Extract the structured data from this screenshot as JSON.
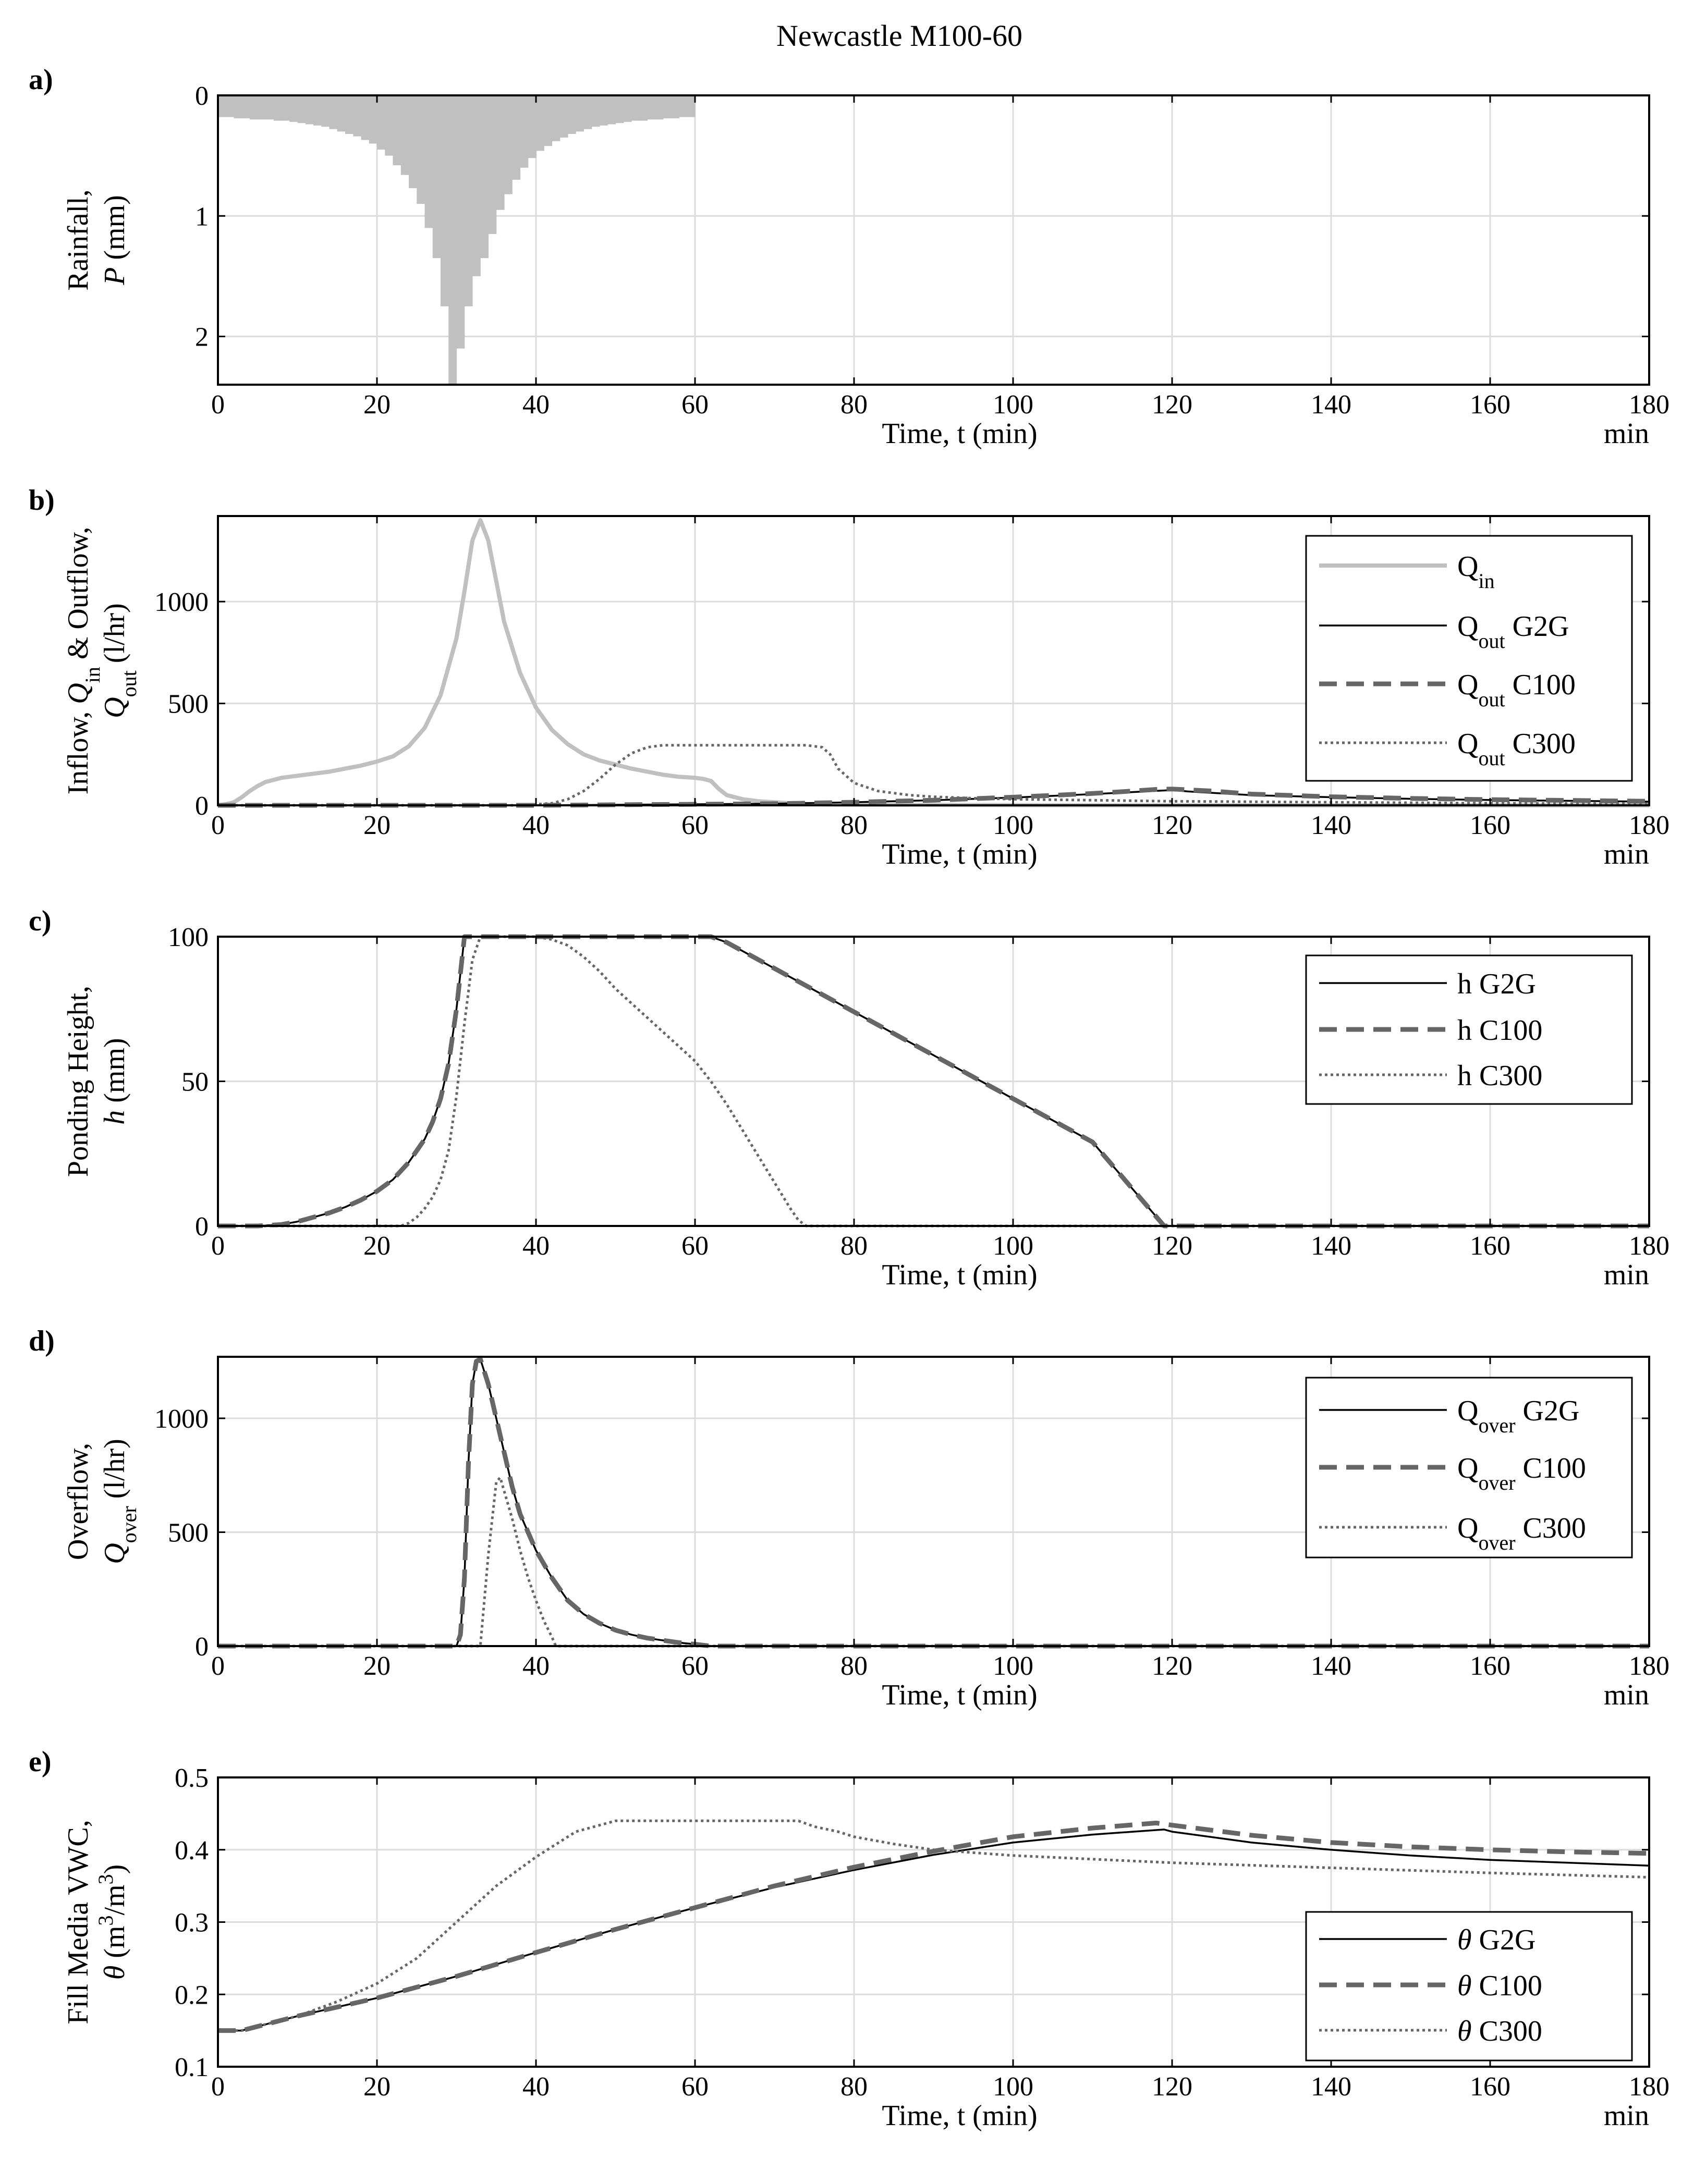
{
  "figure": {
    "title": "Newcastle M100-60"
  },
  "colors": {
    "light_gray": "#c0c0c0",
    "dark_gray": "#666666",
    "black": "#000000",
    "grid": "#dcdcdc"
  },
  "chart_data": [
    {
      "id": "a",
      "tag": "a)",
      "type": "bar",
      "title": "",
      "ylabel": [
        "Rainfall,",
        "P (mm)"
      ],
      "xlabel": "Time, t (min)",
      "xunit": "min",
      "xlim": [
        0,
        180
      ],
      "ylim": [
        0,
        2.4
      ],
      "yreversed": true,
      "xticks": [
        0,
        20,
        40,
        60,
        80,
        100,
        120,
        140,
        160,
        180
      ],
      "yticks": [
        0,
        1,
        2
      ],
      "bar_color": "#c0c0c0",
      "series": [
        {
          "name": "Rainfall",
          "x": [
            1,
            2,
            3,
            4,
            5,
            6,
            7,
            8,
            9,
            10,
            11,
            12,
            13,
            14,
            15,
            16,
            17,
            18,
            19,
            20,
            21,
            22,
            23,
            24,
            25,
            26,
            27,
            28,
            29,
            30,
            31,
            32,
            33,
            34,
            35,
            36,
            37,
            38,
            39,
            40,
            41,
            42,
            43,
            44,
            45,
            46,
            47,
            48,
            49,
            50,
            51,
            52,
            53,
            54,
            55,
            56,
            57,
            58,
            59,
            60
          ],
          "values": [
            0.18,
            0.18,
            0.19,
            0.19,
            0.2,
            0.2,
            0.2,
            0.21,
            0.21,
            0.22,
            0.23,
            0.24,
            0.25,
            0.26,
            0.28,
            0.3,
            0.32,
            0.34,
            0.37,
            0.4,
            0.45,
            0.5,
            0.58,
            0.66,
            0.77,
            0.9,
            1.1,
            1.35,
            1.75,
            2.4,
            2.1,
            1.75,
            1.5,
            1.35,
            1.15,
            0.95,
            0.82,
            0.7,
            0.6,
            0.52,
            0.46,
            0.42,
            0.38,
            0.35,
            0.32,
            0.3,
            0.28,
            0.26,
            0.25,
            0.24,
            0.23,
            0.22,
            0.21,
            0.21,
            0.2,
            0.2,
            0.19,
            0.19,
            0.18,
            0.18
          ]
        }
      ]
    },
    {
      "id": "b",
      "tag": "b)",
      "type": "line",
      "title": "",
      "ylabel": [
        "Inflow, Qin & Outflow,",
        "Qout (l/hr)"
      ],
      "xlabel": "Time, t (min)",
      "xunit": "min",
      "xlim": [
        0,
        180
      ],
      "ylim": [
        0,
        1420
      ],
      "xticks": [
        0,
        20,
        40,
        60,
        80,
        100,
        120,
        140,
        160,
        180
      ],
      "yticks": [
        0,
        500,
        1000
      ],
      "legend_position": "top-right",
      "series": [
        {
          "name": "Q",
          "sub": "in",
          "suffix": "",
          "style": "solid-light",
          "x": [
            0,
            1,
            2,
            3,
            4,
            5,
            6,
            8,
            10,
            12,
            14,
            16,
            18,
            20,
            22,
            24,
            26,
            28,
            30,
            31,
            32,
            33,
            34,
            35,
            36,
            38,
            40,
            42,
            44,
            46,
            48,
            50,
            52,
            54,
            56,
            58,
            60,
            61,
            62,
            63,
            64,
            66,
            68,
            70,
            72,
            75,
            80,
            90,
            100,
            120,
            140,
            160,
            180
          ],
          "values": [
            0,
            5,
            15,
            40,
            70,
            95,
            115,
            135,
            145,
            155,
            165,
            180,
            195,
            215,
            240,
            290,
            380,
            540,
            820,
            1050,
            1300,
            1400,
            1300,
            1100,
            900,
            650,
            480,
            370,
            300,
            250,
            220,
            200,
            180,
            165,
            150,
            140,
            135,
            130,
            120,
            80,
            50,
            30,
            20,
            15,
            10,
            5,
            3,
            2,
            1,
            0,
            0,
            0,
            0
          ]
        },
        {
          "name": "Q",
          "sub": "out",
          "suffix": "G2G",
          "style": "solid-black",
          "x": [
            0,
            20,
            40,
            60,
            70,
            80,
            90,
            100,
            110,
            115,
            120,
            122,
            130,
            140,
            150,
            160,
            170,
            180
          ],
          "values": [
            0,
            0,
            0,
            5,
            8,
            15,
            25,
            38,
            55,
            65,
            75,
            68,
            50,
            40,
            32,
            26,
            22,
            18
          ]
        },
        {
          "name": "Q",
          "sub": "out",
          "suffix": "C100",
          "style": "dashed",
          "x": [
            0,
            20,
            40,
            60,
            70,
            80,
            90,
            100,
            110,
            115,
            118,
            120,
            125,
            130,
            140,
            150,
            160,
            170,
            180
          ],
          "values": [
            0,
            0,
            0,
            5,
            8,
            15,
            25,
            40,
            58,
            70,
            78,
            80,
            70,
            55,
            42,
            34,
            28,
            24,
            20
          ]
        },
        {
          "name": "Q",
          "sub": "out",
          "suffix": "C300",
          "style": "dotted",
          "x": [
            0,
            38,
            42,
            44,
            46,
            48,
            50,
            52,
            54,
            56,
            60,
            65,
            70,
            74,
            76,
            77,
            78,
            80,
            83,
            87,
            90,
            95,
            100,
            110,
            120,
            140,
            160,
            180
          ],
          "values": [
            0,
            0,
            10,
            30,
            70,
            130,
            200,
            255,
            285,
            295,
            295,
            295,
            295,
            295,
            285,
            250,
            180,
            110,
            70,
            50,
            42,
            35,
            30,
            25,
            20,
            15,
            10,
            8
          ]
        }
      ]
    },
    {
      "id": "c",
      "tag": "c)",
      "type": "line",
      "title": "",
      "ylabel": [
        "Ponding Height,",
        "h (mm)"
      ],
      "xlabel": "Time, t (min)",
      "xunit": "min",
      "xlim": [
        0,
        180
      ],
      "ylim": [
        0,
        100
      ],
      "xticks": [
        0,
        20,
        40,
        60,
        80,
        100,
        120,
        140,
        160,
        180
      ],
      "yticks": [
        0,
        50,
        100
      ],
      "legend_position": "top-right",
      "series": [
        {
          "name": "h",
          "sub": "",
          "suffix": "G2G",
          "style": "solid-black",
          "x": [
            0,
            5,
            8,
            10,
            12,
            14,
            16,
            18,
            20,
            22,
            24,
            26,
            27,
            28,
            29,
            30,
            31,
            32,
            40,
            50,
            60,
            62,
            64,
            70,
            80,
            90,
            100,
            110,
            119,
            120,
            130,
            140,
            150,
            160,
            170,
            180
          ],
          "values": [
            0,
            0,
            0.5,
            1.5,
            3,
            4.5,
            6.5,
            9,
            12,
            16,
            22,
            30,
            36,
            44,
            56,
            75,
            100,
            100,
            100,
            100,
            100,
            100,
            98,
            89,
            74,
            59,
            44,
            29,
            0,
            0,
            0,
            0,
            0,
            0,
            0,
            0
          ]
        },
        {
          "name": "h",
          "sub": "",
          "suffix": "C100",
          "style": "dashed",
          "x": [
            0,
            5,
            8,
            10,
            12,
            14,
            16,
            18,
            20,
            22,
            24,
            26,
            27,
            28,
            29,
            30,
            31,
            32,
            40,
            50,
            60,
            62,
            64,
            70,
            80,
            90,
            100,
            110,
            119,
            120,
            130,
            140,
            150,
            160,
            170,
            180
          ],
          "values": [
            0,
            0,
            0.5,
            1.5,
            3,
            4.5,
            6.5,
            9,
            12,
            16,
            22,
            30,
            36,
            44,
            56,
            75,
            100,
            100,
            100,
            100,
            100,
            100,
            98,
            89,
            74,
            59,
            44,
            29,
            0,
            0,
            0,
            0,
            0,
            0,
            0,
            0
          ]
        },
        {
          "name": "h",
          "sub": "",
          "suffix": "C300",
          "style": "dotted",
          "x": [
            0,
            23,
            24,
            25,
            26,
            27,
            28,
            29,
            30,
            31,
            32,
            33,
            34,
            36,
            40,
            42,
            44,
            46,
            48,
            50,
            52,
            54,
            56,
            58,
            60,
            62,
            64,
            66,
            68,
            70,
            72,
            73,
            74,
            80,
            120,
            180
          ],
          "values": [
            0,
            0,
            1,
            3,
            6,
            10,
            16,
            26,
            45,
            70,
            92,
            100,
            100,
            100,
            100,
            99,
            97,
            93,
            88,
            82,
            77,
            72,
            67,
            62,
            57,
            50,
            42,
            33,
            24,
            15,
            6,
            2,
            0,
            0,
            0,
            0
          ]
        }
      ]
    },
    {
      "id": "d",
      "tag": "d)",
      "type": "line",
      "title": "",
      "ylabel": [
        "Overflow,",
        "Qover (l/hr)"
      ],
      "xlabel": "Time, t (min)",
      "xunit": "min",
      "xlim": [
        0,
        180
      ],
      "ylim": [
        0,
        1270
      ],
      "xticks": [
        0,
        20,
        40,
        60,
        80,
        100,
        120,
        140,
        160,
        180
      ],
      "yticks": [
        0,
        500,
        1000
      ],
      "legend_position": "top-right",
      "series": [
        {
          "name": "Q",
          "sub": "over",
          "suffix": "G2G",
          "style": "solid-black",
          "x": [
            0,
            30,
            30.5,
            31,
            31.5,
            32,
            32.5,
            33,
            34,
            35,
            36,
            37,
            38,
            40,
            42,
            44,
            46,
            48,
            50,
            52,
            54,
            56,
            58,
            60,
            62,
            180
          ],
          "values": [
            0,
            0,
            50,
            300,
            800,
            1150,
            1250,
            1260,
            1150,
            1000,
            850,
            700,
            580,
            420,
            300,
            200,
            140,
            100,
            70,
            50,
            35,
            25,
            15,
            8,
            0,
            0
          ]
        },
        {
          "name": "Q",
          "sub": "over",
          "suffix": "C100",
          "style": "dashed",
          "x": [
            0,
            30,
            30.5,
            31,
            31.5,
            32,
            32.5,
            33,
            34,
            35,
            36,
            37,
            38,
            40,
            42,
            44,
            46,
            48,
            50,
            52,
            54,
            56,
            58,
            60,
            62,
            180
          ],
          "values": [
            0,
            0,
            50,
            300,
            800,
            1150,
            1250,
            1260,
            1150,
            1000,
            850,
            700,
            580,
            420,
            300,
            200,
            140,
            100,
            70,
            50,
            35,
            25,
            15,
            8,
            0,
            0
          ]
        },
        {
          "name": "Q",
          "sub": "over",
          "suffix": "C300",
          "style": "dotted",
          "x": [
            0,
            33,
            34,
            35,
            35.5,
            36,
            37,
            38,
            39,
            40,
            41,
            42,
            42.5,
            180
          ],
          "values": [
            0,
            0,
            400,
            720,
            740,
            680,
            560,
            420,
            300,
            200,
            110,
            40,
            0,
            0
          ]
        }
      ]
    },
    {
      "id": "e",
      "tag": "e)",
      "type": "line",
      "title": "",
      "ylabel": [
        "Fill Media VWC,",
        "θ (m3/m3)"
      ],
      "xlabel": "Time, t (min)",
      "xunit": "min",
      "xlim": [
        0,
        180
      ],
      "ylim": [
        0.1,
        0.5
      ],
      "xticks": [
        0,
        20,
        40,
        60,
        80,
        100,
        120,
        140,
        160,
        180
      ],
      "yticks": [
        0.1,
        0.2,
        0.3,
        0.4,
        0.5
      ],
      "legend_position": "bottom-right",
      "series": [
        {
          "name": "θ",
          "sub": "",
          "suffix": "G2G",
          "style": "solid-black",
          "x": [
            0,
            3,
            10,
            20,
            30,
            40,
            50,
            60,
            70,
            80,
            90,
            100,
            110,
            119,
            120,
            130,
            140,
            150,
            160,
            170,
            180
          ],
          "values": [
            0.15,
            0.15,
            0.17,
            0.195,
            0.225,
            0.258,
            0.29,
            0.32,
            0.348,
            0.372,
            0.393,
            0.41,
            0.421,
            0.428,
            0.425,
            0.41,
            0.4,
            0.392,
            0.386,
            0.382,
            0.378
          ]
        },
        {
          "name": "θ",
          "sub": "",
          "suffix": "C100",
          "style": "dashed",
          "x": [
            0,
            3,
            10,
            20,
            30,
            40,
            50,
            60,
            70,
            80,
            90,
            100,
            110,
            118,
            120,
            130,
            140,
            150,
            160,
            170,
            180
          ],
          "values": [
            0.15,
            0.15,
            0.17,
            0.195,
            0.225,
            0.258,
            0.29,
            0.32,
            0.35,
            0.376,
            0.398,
            0.418,
            0.43,
            0.437,
            0.434,
            0.42,
            0.41,
            0.404,
            0.4,
            0.397,
            0.395
          ]
        },
        {
          "name": "θ",
          "sub": "",
          "suffix": "C300",
          "style": "dotted",
          "x": [
            0,
            3,
            10,
            15,
            20,
            25,
            30,
            35,
            40,
            45,
            50,
            52,
            55,
            60,
            70,
            73,
            75,
            78,
            80,
            85,
            90,
            100,
            110,
            120,
            140,
            160,
            180
          ],
          "values": [
            0.15,
            0.15,
            0.17,
            0.19,
            0.215,
            0.25,
            0.3,
            0.35,
            0.39,
            0.425,
            0.44,
            0.44,
            0.44,
            0.44,
            0.44,
            0.44,
            0.432,
            0.425,
            0.418,
            0.408,
            0.4,
            0.392,
            0.387,
            0.382,
            0.375,
            0.368,
            0.362
          ]
        }
      ]
    }
  ]
}
